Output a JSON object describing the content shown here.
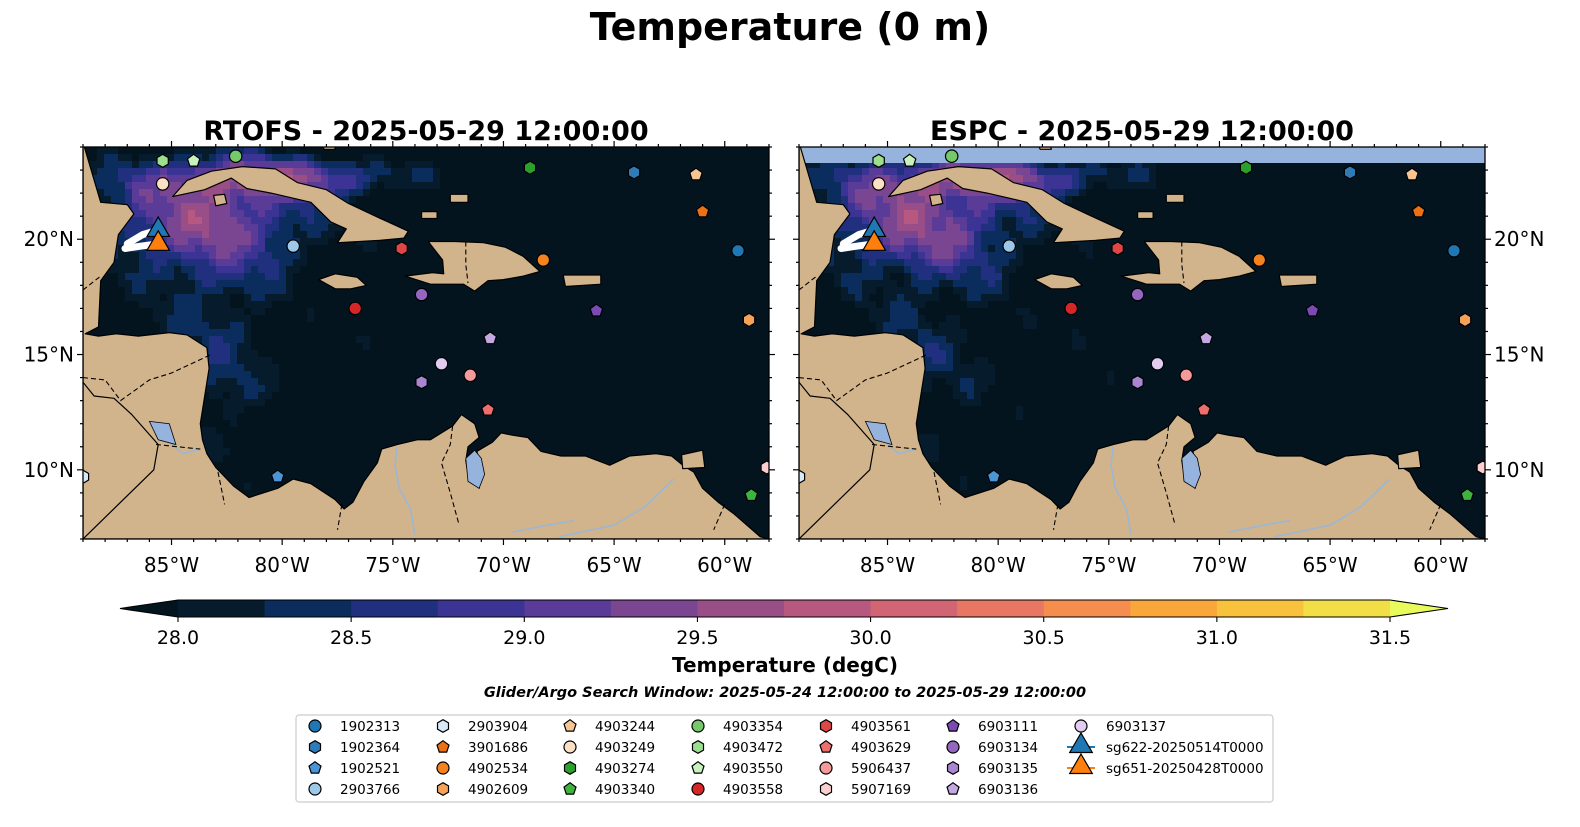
{
  "colors": {
    "land": "#d2b48c",
    "land_edge": "#000000",
    "lake": "#95b3dc",
    "river": "#9bb7d4",
    "nodata_band": "#95b3dc"
  },
  "chart_data": {
    "type": "heatmap",
    "suptitle": "Temperature (0 m)",
    "panels": [
      {
        "title": "RTOFS - 2025-05-29 12:00:00",
        "model": "RTOFS",
        "has_nodata_band": false
      },
      {
        "title": "ESPC - 2025-05-29 12:00:00",
        "model": "ESPC",
        "has_nodata_band": true
      }
    ],
    "map_extent": {
      "lon": [
        -89,
        -58
      ],
      "lat": [
        7,
        24
      ]
    },
    "lon_ticks": [
      {
        "value": -85,
        "label": "85°W"
      },
      {
        "value": -80,
        "label": "80°W"
      },
      {
        "value": -75,
        "label": "75°W"
      },
      {
        "value": -70,
        "label": "70°W"
      },
      {
        "value": -65,
        "label": "65°W"
      },
      {
        "value": -60,
        "label": "60°W"
      }
    ],
    "lat_ticks": [
      {
        "value": 10,
        "label": "10°N"
      },
      {
        "value": 15,
        "label": "15°N"
      },
      {
        "value": 20,
        "label": "20°N"
      }
    ],
    "colorbar": {
      "label": "Temperature (degC)",
      "min": 28.0,
      "max": 31.5,
      "step": 0.25,
      "extend": "both",
      "tick_values": [
        28.0,
        28.5,
        29.0,
        29.5,
        30.0,
        30.5,
        31.0,
        31.5
      ],
      "tick_labels": [
        "28.0",
        "28.5",
        "29.0",
        "29.5",
        "30.0",
        "30.5",
        "31.0",
        "31.5"
      ],
      "colors": [
        "#061c2d",
        "#0a2d5e",
        "#21307e",
        "#3b3495",
        "#5a3b98",
        "#7a4591",
        "#9a4e88",
        "#b75880",
        "#d26573",
        "#e77662",
        "#f48d4e",
        "#f9a63b",
        "#f8c23c",
        "#f2df48"
      ],
      "under_color": "#04141f",
      "over_color": "#e9fb5c"
    },
    "search_window": "Glider/Argo Search Window: 2025-05-24 12:00:00 to 2025-05-29 12:00:00",
    "legend_placement": "bottom-center",
    "markers": [
      {
        "name": "1902313",
        "marker": "circle",
        "color": "#1f77b4",
        "lon": -59.4,
        "lat": 19.5
      },
      {
        "name": "1902364",
        "marker": "hexagon",
        "color": "#2f7bb8",
        "lon": -64.1,
        "lat": 22.9
      },
      {
        "name": "1902521",
        "marker": "pentagon",
        "color": "#4a95d6",
        "lon": -80.2,
        "lat": 9.7
      },
      {
        "name": "2903766",
        "marker": "circle",
        "color": "#9dc8e8",
        "lon": -79.5,
        "lat": 19.7
      },
      {
        "name": "2903904",
        "marker": "hexagon",
        "color": "#d7eaf6",
        "lon": -89.0,
        "lat": 9.7
      },
      {
        "name": "3901686",
        "marker": "pentagon",
        "color": "#ec7014",
        "lon": -61.0,
        "lat": 21.2
      },
      {
        "name": "4902534",
        "marker": "circle",
        "color": "#f4831f",
        "lon": -68.2,
        "lat": 19.1
      },
      {
        "name": "4902609",
        "marker": "hexagon",
        "color": "#f6a35a",
        "lon": -58.9,
        "lat": 16.5
      },
      {
        "name": "4903244",
        "marker": "pentagon",
        "color": "#f9c494",
        "lon": -61.3,
        "lat": 22.8
      },
      {
        "name": "4903249",
        "marker": "circle",
        "color": "#fbe0c6",
        "lon": -85.4,
        "lat": 22.4
      },
      {
        "name": "4903274",
        "marker": "hexagon",
        "color": "#2ca02c",
        "lon": -68.8,
        "lat": 23.1
      },
      {
        "name": "4903340",
        "marker": "pentagon",
        "color": "#3fb33f",
        "lon": -58.8,
        "lat": 8.9
      },
      {
        "name": "4903354",
        "marker": "circle",
        "color": "#76c96b",
        "lon": -82.1,
        "lat": 23.6
      },
      {
        "name": "4903472",
        "marker": "hexagon",
        "color": "#9be08e",
        "lon": -85.4,
        "lat": 23.4
      },
      {
        "name": "4903550",
        "marker": "pentagon",
        "color": "#c8f2bc",
        "lon": -84.0,
        "lat": 23.4
      },
      {
        "name": "4903558",
        "marker": "circle",
        "color": "#d62728",
        "lon": -76.7,
        "lat": 17.0
      },
      {
        "name": "4903561",
        "marker": "hexagon",
        "color": "#e04646",
        "lon": -74.6,
        "lat": 19.6
      },
      {
        "name": "4903629",
        "marker": "pentagon",
        "color": "#ee6e6e",
        "lon": -70.7,
        "lat": 12.6
      },
      {
        "name": "5906437",
        "marker": "circle",
        "color": "#f59a9a",
        "lon": -71.5,
        "lat": 14.1
      },
      {
        "name": "5907169",
        "marker": "hexagon",
        "color": "#fbcfcf",
        "lon": -58.1,
        "lat": 10.1
      },
      {
        "name": "6903111",
        "marker": "pentagon",
        "color": "#7b4ab4",
        "lon": -65.8,
        "lat": 16.9
      },
      {
        "name": "6903134",
        "marker": "circle",
        "color": "#9466c0",
        "lon": -73.7,
        "lat": 17.6
      },
      {
        "name": "6903135",
        "marker": "hexagon",
        "color": "#a985d2",
        "lon": -73.7,
        "lat": 13.8
      },
      {
        "name": "6903136",
        "marker": "pentagon",
        "color": "#c4a8e2",
        "lon": -70.6,
        "lat": 15.7
      },
      {
        "name": "6903137",
        "marker": "circle",
        "color": "#e2ccf2",
        "lon": -72.8,
        "lat": 14.6
      },
      {
        "name": "sg622-20250514T0000",
        "marker": "triangle",
        "color": "#1f77b4",
        "lon": -85.6,
        "lat": 20.4,
        "track": [
          [
            -87.0,
            19.8
          ],
          [
            -86.3,
            20.2
          ],
          [
            -85.6,
            20.4
          ]
        ]
      },
      {
        "name": "sg651-20250428T0000",
        "marker": "triangle",
        "color": "#ff7f0e",
        "lon": -85.6,
        "lat": 19.8,
        "track": [
          [
            -87.1,
            19.6
          ],
          [
            -86.4,
            19.7
          ],
          [
            -85.6,
            19.8
          ]
        ]
      }
    ]
  }
}
